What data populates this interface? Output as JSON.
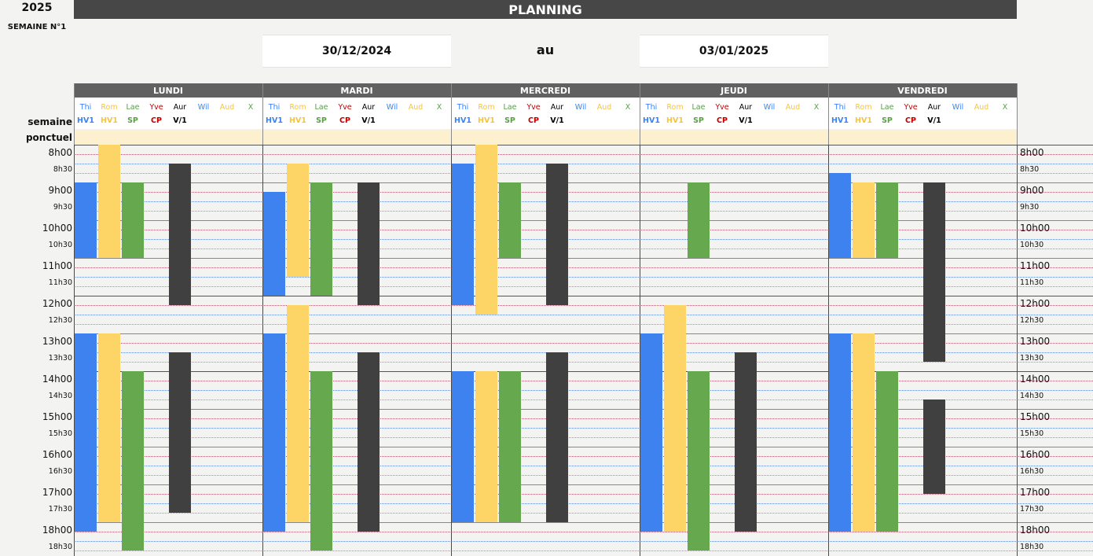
{
  "header": {
    "year": "2025",
    "week": "SEMAINE N°1",
    "title": "PLANNING",
    "date_from": "30/12/2024",
    "connector": "au",
    "date_to": "03/01/2025",
    "label_semaine": "semaine",
    "label_ponctuel": "ponctuel"
  },
  "people": [
    {
      "name": "Thi",
      "code": "HV1",
      "color": "#3e82f0"
    },
    {
      "name": "Rom",
      "code": "HV1",
      "color": "#f6c344"
    },
    {
      "name": "Lae",
      "code": "SP",
      "color": "#5a9e45"
    },
    {
      "name": "Yve",
      "code": "CP",
      "color": "#c00000"
    },
    {
      "name": "Aur",
      "code": "V/1",
      "color": "#000000"
    },
    {
      "name": "Wil",
      "code": "",
      "color": "#3e82f0"
    },
    {
      "name": "Aud",
      "code": "",
      "color": "#f6c344"
    },
    {
      "name": "X",
      "code": "",
      "color": "#5a9e45"
    }
  ],
  "days": [
    {
      "label": "LUNDI",
      "bars": [
        {
          "person": 0,
          "color": "blue",
          "from": 9.0,
          "to": 11.0
        },
        {
          "person": 1,
          "color": "yellow",
          "from": 8.0,
          "to": 11.0
        },
        {
          "person": 2,
          "color": "green",
          "from": 9.0,
          "to": 11.0
        },
        {
          "person": 4,
          "color": "dark",
          "from": 8.5,
          "to": 12.25
        },
        {
          "person": 0,
          "color": "blue",
          "from": 13.0,
          "to": 18.25
        },
        {
          "person": 1,
          "color": "yellow",
          "from": 13.0,
          "to": 18.0
        },
        {
          "person": 2,
          "color": "green",
          "from": 14.0,
          "to": 18.75
        },
        {
          "person": 4,
          "color": "dark",
          "from": 13.5,
          "to": 17.75
        }
      ]
    },
    {
      "label": "MARDI",
      "bars": [
        {
          "person": 0,
          "color": "blue",
          "from": 9.25,
          "to": 12.0
        },
        {
          "person": 1,
          "color": "yellow",
          "from": 8.5,
          "to": 11.5
        },
        {
          "person": 2,
          "color": "green",
          "from": 9.0,
          "to": 12.0
        },
        {
          "person": 4,
          "color": "dark",
          "from": 9.0,
          "to": 12.25
        },
        {
          "person": 0,
          "color": "blue",
          "from": 13.0,
          "to": 18.25
        },
        {
          "person": 1,
          "color": "yellow",
          "from": 12.25,
          "to": 18.0
        },
        {
          "person": 2,
          "color": "green",
          "from": 14.0,
          "to": 18.75
        },
        {
          "person": 4,
          "color": "dark",
          "from": 13.5,
          "to": 18.25
        }
      ]
    },
    {
      "label": "MERCREDI",
      "bars": [
        {
          "person": 0,
          "color": "blue",
          "from": 8.5,
          "to": 12.25
        },
        {
          "person": 1,
          "color": "yellow",
          "from": 8.0,
          "to": 12.5
        },
        {
          "person": 2,
          "color": "green",
          "from": 9.0,
          "to": 11.0
        },
        {
          "person": 4,
          "color": "dark",
          "from": 8.5,
          "to": 12.25
        },
        {
          "person": 0,
          "color": "blue",
          "from": 14.0,
          "to": 18.0
        },
        {
          "person": 1,
          "color": "yellow",
          "from": 14.0,
          "to": 18.0
        },
        {
          "person": 2,
          "color": "green",
          "from": 14.0,
          "to": 18.0
        },
        {
          "person": 4,
          "color": "dark",
          "from": 13.5,
          "to": 18.0
        }
      ]
    },
    {
      "label": "JEUDI",
      "bars": [
        {
          "person": 2,
          "color": "green",
          "from": 9.0,
          "to": 11.0
        },
        {
          "person": 0,
          "color": "blue",
          "from": 13.0,
          "to": 18.25
        },
        {
          "person": 1,
          "color": "yellow",
          "from": 12.25,
          "to": 18.25
        },
        {
          "person": 2,
          "color": "green",
          "from": 14.0,
          "to": 18.75
        },
        {
          "person": 4,
          "color": "dark",
          "from": 13.5,
          "to": 18.25
        }
      ]
    },
    {
      "label": "VENDREDI",
      "bars": [
        {
          "person": 0,
          "color": "blue",
          "from": 8.75,
          "to": 11.0
        },
        {
          "person": 1,
          "color": "yellow",
          "from": 9.0,
          "to": 11.0
        },
        {
          "person": 2,
          "color": "green",
          "from": 9.0,
          "to": 11.0
        },
        {
          "person": 4,
          "color": "dark",
          "from": 9.0,
          "to": 13.75
        },
        {
          "person": 0,
          "color": "blue",
          "from": 13.0,
          "to": 18.25
        },
        {
          "person": 1,
          "color": "yellow",
          "from": 13.0,
          "to": 18.25
        },
        {
          "person": 2,
          "color": "green",
          "from": 14.0,
          "to": 18.25
        },
        {
          "person": 4,
          "color": "dark",
          "from": 14.75,
          "to": 17.25
        }
      ]
    }
  ],
  "times": [
    {
      "hour": "8h00",
      "half": "8h30"
    },
    {
      "hour": "9h00",
      "half": "9h30"
    },
    {
      "hour": "10h00",
      "half": "10h30"
    },
    {
      "hour": "11h00",
      "half": "11h30"
    },
    {
      "hour": "12h00",
      "half": "12h30"
    },
    {
      "hour": "13h00",
      "half": "13h30"
    },
    {
      "hour": "14h00",
      "half": "14h30"
    },
    {
      "hour": "15h00",
      "half": "15h30"
    },
    {
      "hour": "16h00",
      "half": "16h30"
    },
    {
      "hour": "17h00",
      "half": "17h30"
    },
    {
      "hour": "18h00",
      "half": "18h30"
    }
  ],
  "colors": {
    "blue": "#3e82f0",
    "yellow": "#fdd466",
    "green": "#66a84e",
    "dark": "#404040",
    "header": "#474747",
    "day_header": "#616161",
    "ponctuel_band": "#fdf0cf"
  }
}
